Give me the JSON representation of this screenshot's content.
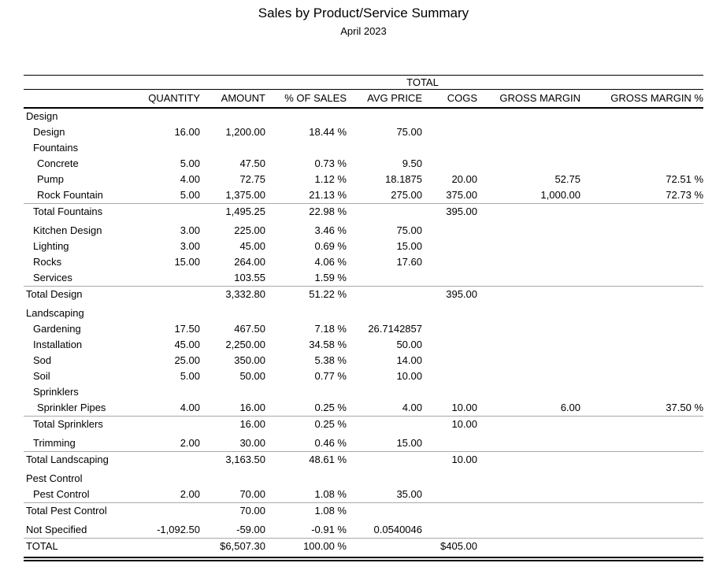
{
  "report": {
    "title": "Sales by Product/Service Summary",
    "subtitle": "April 2023",
    "group_header": "TOTAL",
    "columns": [
      "QUANTITY",
      "AMOUNT",
      "% OF SALES",
      "AVG PRICE",
      "COGS",
      "GROSS MARGIN",
      "GROSS MARGIN %"
    ],
    "rows": [
      {
        "label": "Design",
        "indent": 0,
        "style": "section",
        "cells": [
          "",
          "",
          "",
          "",
          "",
          "",
          ""
        ]
      },
      {
        "label": "Design",
        "indent": 1,
        "style": "item",
        "cells": [
          "16.00",
          "1,200.00",
          "18.44 %",
          "75.00",
          "",
          "",
          ""
        ]
      },
      {
        "label": "Fountains",
        "indent": 1,
        "style": "section",
        "cells": [
          "",
          "",
          "",
          "",
          "",
          "",
          ""
        ]
      },
      {
        "label": "Concrete",
        "indent": 2,
        "style": "item",
        "cells": [
          "5.00",
          "47.50",
          "0.73 %",
          "9.50",
          "",
          "",
          ""
        ]
      },
      {
        "label": "Pump",
        "indent": 2,
        "style": "item",
        "cells": [
          "4.00",
          "72.75",
          "1.12 %",
          "18.1875",
          "20.00",
          "52.75",
          "72.51 %"
        ]
      },
      {
        "label": "Rock Fountain",
        "indent": 2,
        "style": "item",
        "cells": [
          "5.00",
          "1,375.00",
          "21.13 %",
          "275.00",
          "375.00",
          "1,000.00",
          "72.73 %"
        ]
      },
      {
        "label": "Total Fountains",
        "indent": 1,
        "style": "total",
        "cells": [
          "",
          "1,495.25",
          "22.98 %",
          "",
          "395.00",
          "",
          ""
        ]
      },
      {
        "label": "Kitchen Design",
        "indent": 1,
        "style": "item",
        "cells": [
          "3.00",
          "225.00",
          "3.46 %",
          "75.00",
          "",
          "",
          ""
        ]
      },
      {
        "label": "Lighting",
        "indent": 1,
        "style": "item",
        "cells": [
          "3.00",
          "45.00",
          "0.69 %",
          "15.00",
          "",
          "",
          ""
        ]
      },
      {
        "label": "Rocks",
        "indent": 1,
        "style": "item",
        "cells": [
          "15.00",
          "264.00",
          "4.06 %",
          "17.60",
          "",
          "",
          ""
        ]
      },
      {
        "label": "Services",
        "indent": 1,
        "style": "item",
        "cells": [
          "",
          "103.55",
          "1.59 %",
          "",
          "",
          "",
          ""
        ]
      },
      {
        "label": "Total Design",
        "indent": 0,
        "style": "total",
        "cells": [
          "",
          "3,332.80",
          "51.22 %",
          "",
          "395.00",
          "",
          ""
        ]
      },
      {
        "label": "Landscaping",
        "indent": 0,
        "style": "section",
        "cells": [
          "",
          "",
          "",
          "",
          "",
          "",
          ""
        ]
      },
      {
        "label": "Gardening",
        "indent": 1,
        "style": "item",
        "cells": [
          "17.50",
          "467.50",
          "7.18 %",
          "26.7142857",
          "",
          "",
          ""
        ]
      },
      {
        "label": "Installation",
        "indent": 1,
        "style": "item",
        "cells": [
          "45.00",
          "2,250.00",
          "34.58 %",
          "50.00",
          "",
          "",
          ""
        ]
      },
      {
        "label": "Sod",
        "indent": 1,
        "style": "item",
        "cells": [
          "25.00",
          "350.00",
          "5.38 %",
          "14.00",
          "",
          "",
          ""
        ]
      },
      {
        "label": "Soil",
        "indent": 1,
        "style": "item",
        "cells": [
          "5.00",
          "50.00",
          "0.77 %",
          "10.00",
          "",
          "",
          ""
        ]
      },
      {
        "label": "Sprinklers",
        "indent": 1,
        "style": "section",
        "cells": [
          "",
          "",
          "",
          "",
          "",
          "",
          ""
        ]
      },
      {
        "label": "Sprinkler Pipes",
        "indent": 2,
        "style": "item",
        "cells": [
          "4.00",
          "16.00",
          "0.25 %",
          "4.00",
          "10.00",
          "6.00",
          "37.50 %"
        ]
      },
      {
        "label": "Total Sprinklers",
        "indent": 1,
        "style": "total",
        "cells": [
          "",
          "16.00",
          "0.25 %",
          "",
          "10.00",
          "",
          ""
        ]
      },
      {
        "label": "Trimming",
        "indent": 1,
        "style": "item",
        "cells": [
          "2.00",
          "30.00",
          "0.46 %",
          "15.00",
          "",
          "",
          ""
        ]
      },
      {
        "label": "Total Landscaping",
        "indent": 0,
        "style": "total",
        "cells": [
          "",
          "3,163.50",
          "48.61 %",
          "",
          "10.00",
          "",
          ""
        ]
      },
      {
        "label": "Pest Control",
        "indent": 0,
        "style": "section",
        "cells": [
          "",
          "",
          "",
          "",
          "",
          "",
          ""
        ]
      },
      {
        "label": "Pest Control",
        "indent": 1,
        "style": "item",
        "cells": [
          "2.00",
          "70.00",
          "1.08 %",
          "35.00",
          "",
          "",
          ""
        ]
      },
      {
        "label": "Total Pest Control",
        "indent": 0,
        "style": "total",
        "cells": [
          "",
          "70.00",
          "1.08 %",
          "",
          "",
          "",
          ""
        ]
      },
      {
        "label": "Not Specified",
        "indent": 0,
        "style": "item",
        "cells": [
          "-1,092.50",
          "-59.00",
          "-0.91 %",
          "0.0540046",
          "",
          "",
          ""
        ]
      },
      {
        "label": "TOTAL",
        "indent": 0,
        "style": "grand",
        "cells": [
          "",
          "$6,507.30",
          "100.00 %",
          "",
          "$405.00",
          "",
          ""
        ]
      }
    ]
  }
}
